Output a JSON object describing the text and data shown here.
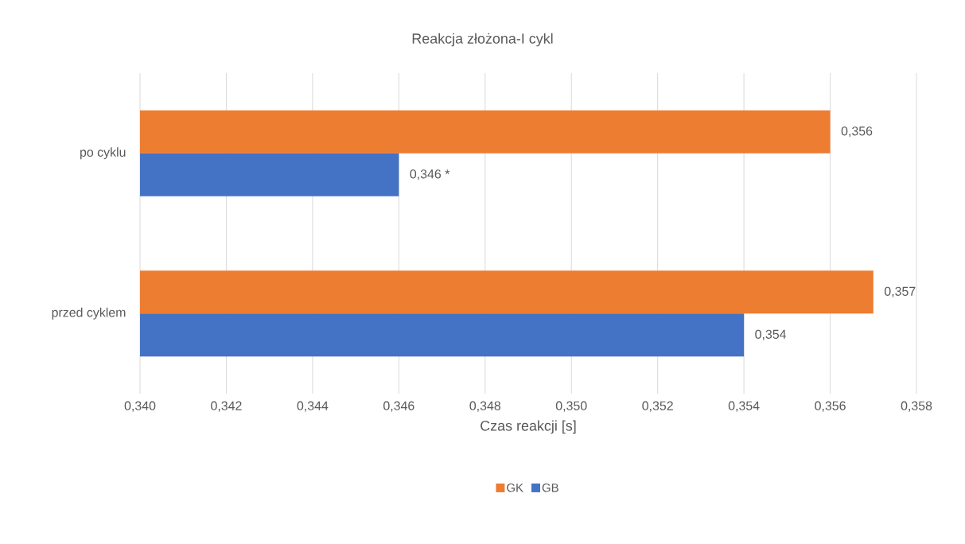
{
  "chart_data": {
    "type": "bar",
    "orientation": "horizontal",
    "title": "Reakcja złożona-I cykl",
    "xlabel": "Czas reakcji [s]",
    "categories": [
      "po cyklu",
      "przed cyklem"
    ],
    "series": [
      {
        "name": "GK",
        "color": "#ed7d31",
        "values": [
          0.356,
          0.357
        ],
        "value_labels": [
          "0,356",
          "0,357"
        ]
      },
      {
        "name": "GB",
        "color": "#4472c4",
        "values": [
          0.346,
          0.354
        ],
        "value_labels": [
          "0,346 *",
          "0,354"
        ]
      }
    ],
    "xlim": [
      0.34,
      0.358
    ],
    "xticks": [
      {
        "value": 0.34,
        "label": "0,340"
      },
      {
        "value": 0.342,
        "label": "0,342"
      },
      {
        "value": 0.344,
        "label": "0,344"
      },
      {
        "value": 0.346,
        "label": "0,346"
      },
      {
        "value": 0.348,
        "label": "0,348"
      },
      {
        "value": 0.35,
        "label": "0,350"
      },
      {
        "value": 0.352,
        "label": "0,352"
      },
      {
        "value": 0.354,
        "label": "0,354"
      },
      {
        "value": 0.356,
        "label": "0,356"
      },
      {
        "value": 0.358,
        "label": "0,358"
      }
    ],
    "grid": "x",
    "legend": "bottom"
  }
}
